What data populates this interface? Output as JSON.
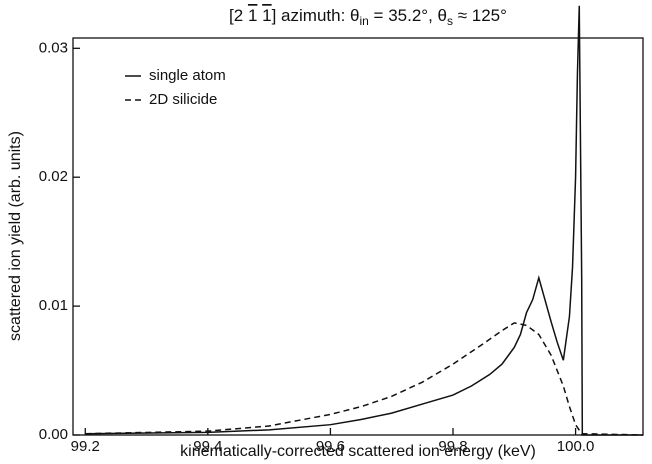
{
  "chart_data": {
    "type": "line",
    "title": [
      "[2 ",
      "1",
      " ",
      "1",
      "] azimuth: θ",
      "in",
      " = 35.2°,  θ",
      "s",
      " ≈ 125°"
    ],
    "xlabel": "kinematically-corrected scattered ion energy (keV)",
    "ylabel": "scattered ion yield (arb. units)",
    "xlim": [
      99.18,
      100.11
    ],
    "ylim": [
      0,
      0.0308
    ],
    "xticks": [
      99.2,
      99.4,
      99.6,
      99.8,
      {
        "value": 100,
        "label": "100.0"
      }
    ],
    "yticks": [
      {
        "value": 0,
        "label": "0.00"
      },
      {
        "value": 0.01,
        "label": "0.01"
      },
      {
        "value": 0.02,
        "label": "0.02"
      },
      {
        "value": 0.03,
        "label": "0.03"
      }
    ],
    "legend": "upper left",
    "series": [
      {
        "name": "single atom",
        "color": "#111111",
        "dash": "solid",
        "x": [
          99.2,
          99.4,
          99.5,
          99.6,
          99.65,
          99.7,
          99.75,
          99.8,
          99.83,
          99.86,
          99.88,
          99.9,
          99.91,
          99.92,
          99.93,
          99.94,
          99.95,
          99.96,
          99.97,
          99.98,
          99.99,
          99.995,
          100.0,
          100.003,
          100.006,
          100.01,
          100.011,
          100.11
        ],
        "values": [
          0.0001,
          0.0002,
          0.0004,
          0.0008,
          0.0012,
          0.0017,
          0.0024,
          0.0031,
          0.0038,
          0.0047,
          0.0055,
          0.0068,
          0.0078,
          0.0095,
          0.0105,
          0.0122,
          0.0105,
          0.0088,
          0.0072,
          0.0058,
          0.0092,
          0.013,
          0.02,
          0.028,
          0.0333,
          0.012,
          0.0,
          0.0
        ]
      },
      {
        "name": "2D silicide",
        "color": "#111111",
        "dash": "dashed",
        "x": [
          99.2,
          99.4,
          99.5,
          99.6,
          99.65,
          99.7,
          99.75,
          99.8,
          99.85,
          99.88,
          99.9,
          99.92,
          99.94,
          99.96,
          99.98,
          99.99,
          100.0,
          100.01,
          100.11
        ],
        "values": [
          0.0001,
          0.0003,
          0.0007,
          0.0016,
          0.0022,
          0.003,
          0.0041,
          0.0055,
          0.0071,
          0.0081,
          0.0087,
          0.0085,
          0.0078,
          0.0062,
          0.0038,
          0.0022,
          0.0008,
          0.0001,
          0.0
        ]
      }
    ]
  }
}
